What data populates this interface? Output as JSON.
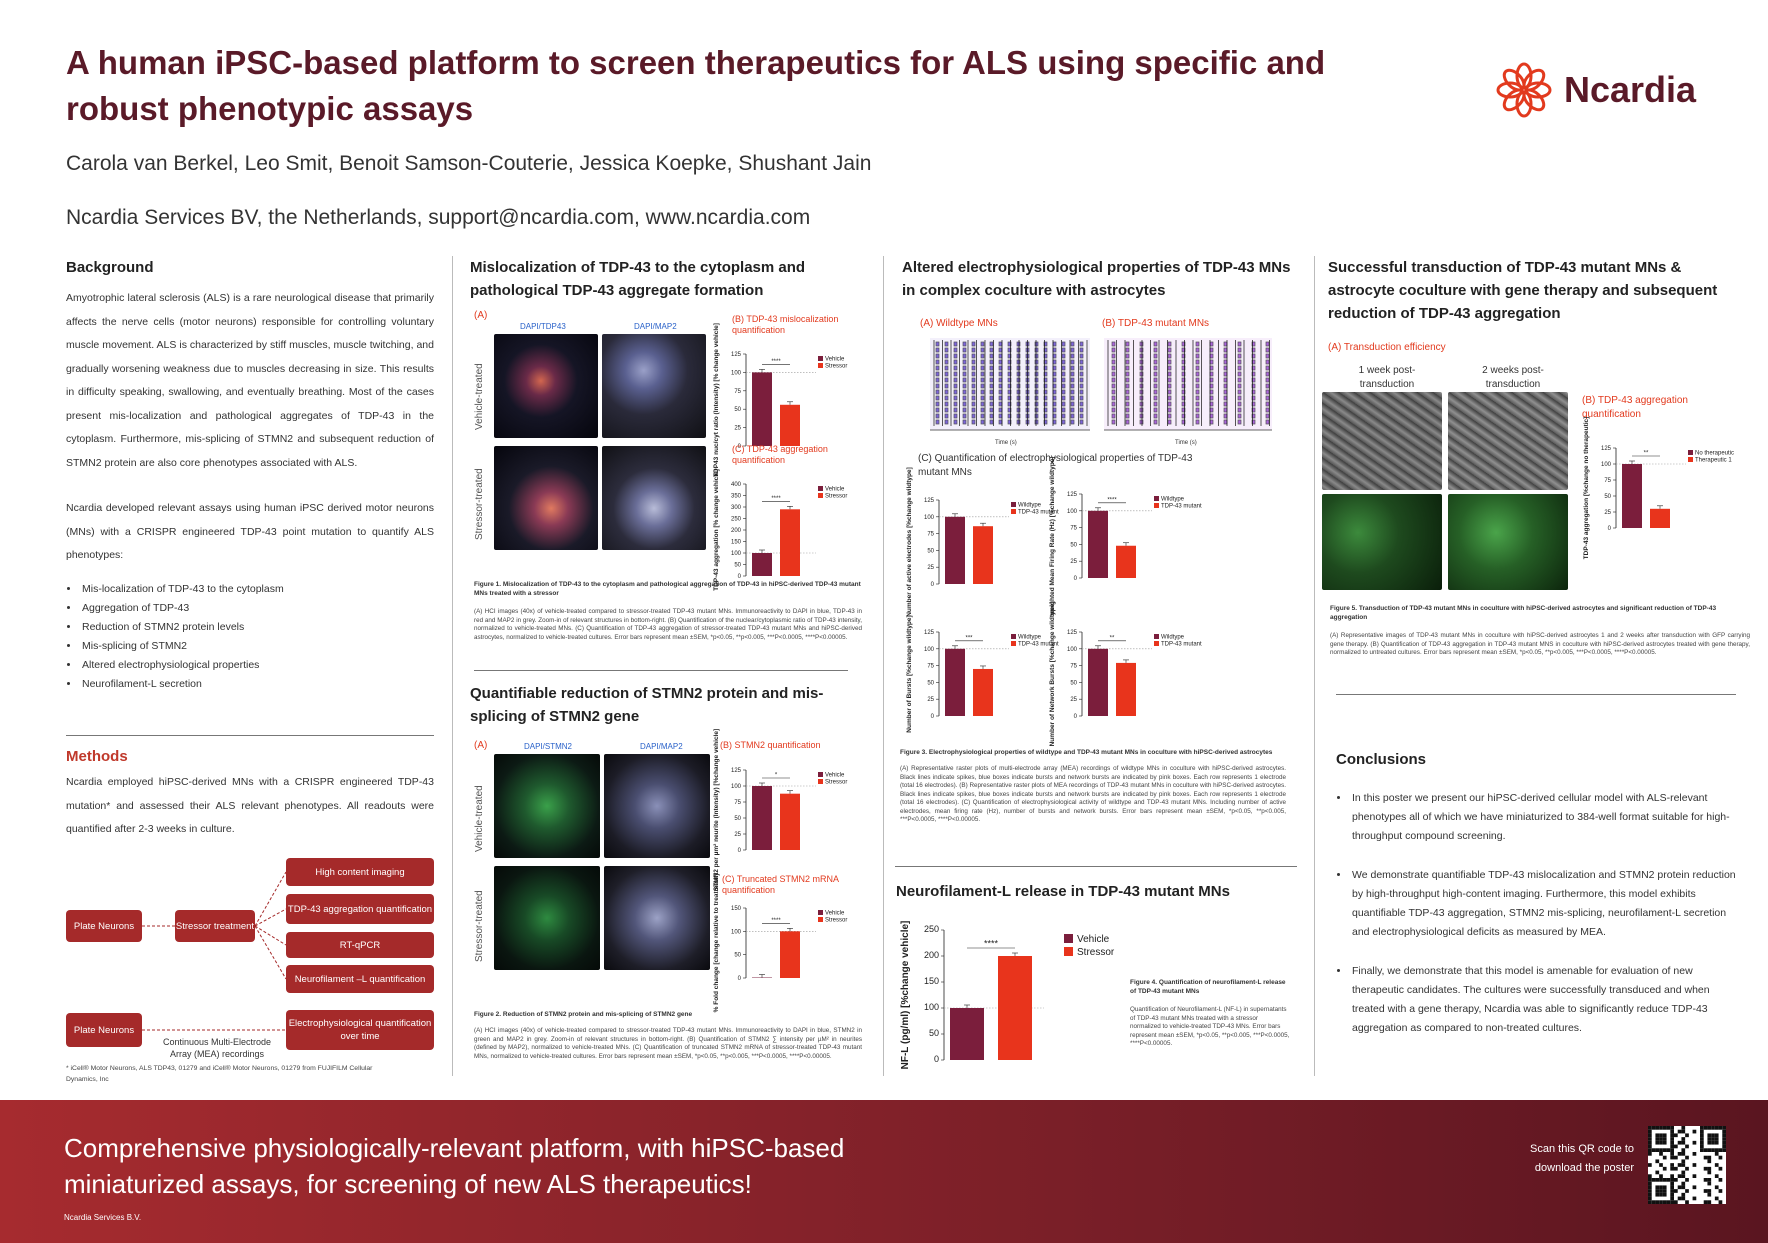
{
  "header": {
    "title": "A human iPSC-based platform to screen therapeutics for ALS using specific and robust phenotypic assays",
    "authors": "Carola van Berkel, Leo Smit, Benoit Samson-Couterie, Jessica Koepke, Shushant Jain",
    "affiliation": "Ncardia Services BV, the Netherlands, support@ncardia.com, www.ncardia.com",
    "logo_text": "Ncardia"
  },
  "background": {
    "heading": "Background",
    "p1": "Amyotrophic lateral sclerosis (ALS) is a rare neurological disease that primarily affects the nerve cells (motor neurons) responsible for controlling voluntary muscle movement. ALS is characterized by stiff muscles, muscle twitching, and gradually worsening weakness due to muscles decreasing in size. This results in difficulty speaking, swallowing, and eventually breathing. Most of the cases present mis-localization and pathological aggregates of TDP-43 in the cytoplasm. Furthermore, mis-splicing of STMN2 and subsequent reduction of STMN2 protein are also core phenotypes associated with ALS.",
    "p2": "Ncardia developed relevant assays using human iPSC derived motor neurons (MNs) with a CRISPR engineered TDP-43 point mutation to quantify ALS phenotypes:",
    "bullets": [
      "Mis-localization of TDP-43 to the cytoplasm",
      "Aggregation of TDP-43",
      "Reduction of STMN2 protein levels",
      "Mis-splicing of STMN2",
      "Altered electrophysiological properties",
      "Neurofilament-L secretion"
    ]
  },
  "methods": {
    "heading": "Methods",
    "text": "Ncardia employed hiPSC-derived MNs with a CRISPR engineered TDP-43 mutation* and assessed their ALS relevant phenotypes. All readouts were quantified after 2-3 weeks in culture.",
    "plate1": "Plate Neurons",
    "stressor": "Stressor treatment",
    "readouts": [
      "High content imaging",
      "TDP-43 aggregation quantification",
      "RT-qPCR",
      "Neurofilament –L quantification"
    ],
    "plate2": "Plate Neurons",
    "mea_label": "Continuous Multi-Electrode Array (MEA) recordings",
    "ephys": "Electrophysiological quantification over time",
    "footnote": "* iCell® Motor Neurons, ALS TDP43, 01279 and iCell® Motor Neurons, 01279 from FUJIFILM Cellular Dynamics, Inc"
  },
  "col2": {
    "heading1": "Mislocalization of TDP-43 to the cytoplasm and pathological TDP-43 aggregate formation",
    "a_label": "(A)",
    "dapi_tdp": "DAPI/TDP43",
    "dapi_map": "DAPI/MAP2",
    "vehicle_treated": "Vehicle-treated",
    "stressor_treated": "Stressor-treated",
    "b_label": "(B) TDP-43 mislocalization quantification",
    "c_label": "(C) TDP-43 aggregation quantification",
    "fig1_title": "Figure 1. Mislocalization of TDP-43 to the cytoplasm and pathological aggregation of TDP-43 in hiPSC-derived TDP-43 mutant MNs treated with a stressor",
    "fig1_text": "(A) HCI images (40x) of vehicle-treated compared to stressor-treated TDP-43 mutant MNs. Immunoreactivity to DAPI in blue, TDP-43 in red and MAP2 in grey. Zoom-in of relevant structures in bottom-right. (B) Quantification of the nuclear/cytoplasmic ratio of TDP-43 intensity, normalized to vehicle-treated MNs. (C) Quantification of TDP-43 aggregation of stressor-treated TDP-43 mutant MNs and hiPSC-derived astrocytes, normalized to vehicle-treated cultures. Error bars represent mean ±SEM, *p<0.05, **p<0.005, ***P<0.0005, ****P<0.00005.",
    "heading2": "Quantifiable reduction of STMN2 protein and mis-splicing of STMN2 gene",
    "dapi_stmn": "DAPI/STMN2",
    "b2_label": "(B) STMN2 quantification",
    "c2_label": "(C) Truncated STMN2 mRNA quantification",
    "fig2_title": "Figure 2. Reduction of STMN2 protein and mis-splicing of STMN2 gene",
    "fig2_text": "(A) HCI images (40x) of vehicle-treated compared to stressor-treated TDP-43 mutant MNs. Immunoreactivity to DAPI in blue, STMN2 in green and MAP2 in grey. Zoom-in of relevant structures in bottom-right. (B) Quantification of STMN2 ∑ intensity per µM² in neurites (defined by MAP2), normalized to vehicle-treated MNs. (C) Quantification of truncated STMN2 mRNA of stressor-treated TDP-43 mutant MNs, normalized to vehicle-treated cultures. Error bars represent mean ±SEM, *p<0.05, **p<0.005, ***P<0.0005, ****P<0.00005."
  },
  "col3": {
    "heading1": "Altered electrophysiological properties of TDP-43 MNs in complex coculture with astrocytes",
    "a_label": "(A) Wildtype MNs",
    "b_label": "(B) TDP-43 mutant MNs",
    "time_label": "Time (s)",
    "c_label": "(C) Quantification of electrophysiological properties of TDP-43 mutant MNs",
    "fig3_title": "Figure 3. Electrophysiological properties of wildtype and TDP-43 mutant MNs in coculture with hiPSC-derived astrocytes",
    "fig3_text": "(A) Representative raster plots of multi-electrode array (MEA) recordings of wildtype MNs in coculture with hiPSC-derived astrocytes. Black lines indicate spikes, blue boxes indicate bursts and network bursts are indicated by pink boxes. Each row represents 1 electrode (total 16 electrodes). (B) Representative raster plots of MEA recordings of TDP-43 mutant MNs in coculture with hiPSC-derived astrocytes. Black lines indicate spikes, blue boxes indicate bursts and network bursts are indicated by pink boxes. Each row represents 1 electrode (total 16 electrodes). (C) Quantification of electrophysiological activity of wildtype and TDP-43 mutant MNs. Including number of active electrodes, mean firing rate (Hz), number of bursts and network bursts. Error bars represent mean ±SEM, *p<0.05, **p<0.005, ***P<0.0005, ****P<0.00005.",
    "heading2": "Neurofilament-L release in TDP-43 mutant MNs",
    "fig4_title": "Figure 4. Quantification of neurofilament-L release of TDP-43 mutant MNs",
    "fig4_text": "Quantification of Neurofilament-L (NF-L) in supernatants of TDP-43 mutant MNs treated with a stressor normalized to vehicle-treated TDP-43 MNs. Error bars represent mean ±SEM, *p<0.05, **p<0.005, ***P<0.0005, ****P<0.00005."
  },
  "col4": {
    "heading1": "Successful transduction of TDP-43 mutant MNs & astrocyte coculture with gene therapy and subsequent reduction of TDP-43 aggregation",
    "a_label": "(A) Transduction efficiency",
    "week1": "1 week post-transduction",
    "week2": "2 weeks post-transduction",
    "b_label": "(B) TDP-43 aggregation quantification",
    "fig5_title": "Figure 5. Transduction of TDP-43 mutant MNs in coculture with hiPSC-derived astrocytes and significant reduction of TDP-43 aggregation",
    "fig5_text": "(A) Representative images of TDP-43 mutant MNs in coculture with hiPSC-derived astrocytes 1 and 2 weeks after transduction with GFP carrying gene therapy. (B) Quantification of TDP-43 aggregation in TDP-43 mutant MNS in coculture with hiPSC-derived astrocytes treated with gene therapy, normalized to untreated cultures. Error bars represent mean ±SEM, *p<0.05, **p<0.005, ***P<0.0005, ****P<0.00005.",
    "conclusions_heading": "Conclusions",
    "conclusions": [
      "In this poster we present our hiPSC-derived cellular model with ALS-relevant phenotypes all of which we have miniaturized to 384-well format suitable for high-throughput compound screening.",
      "We demonstrate quantifiable TDP-43 mislocalization and STMN2 protein reduction by high-throughput high-content imaging. Furthermore, this model exhibits quantifiable TDP-43 aggregation, STMN2 mis-splicing, neurofilament-L secretion and electrophysiological deficits as measured by MEA.",
      "Finally, we demonstrate that this model is amenable for evaluation of new therapeutic candidates. The cultures were successfully transduced and when treated with a gene therapy, Ncardia was able to significantly reduce TDP-43 aggregation as compared to non-treated cultures."
    ]
  },
  "footer": {
    "message": "Comprehensive physiologically-relevant platform, with hiPSC-based miniaturized assays, for screening of new ALS therapeutics!",
    "company": "Ncardia Services B.V.",
    "qr_text": "Scan this QR code to download the poster"
  },
  "colors": {
    "vehicle": "#7b1e3c",
    "stressor": "#e8341c",
    "brand": "#5a1a28"
  },
  "chart_data": [
    {
      "id": "tdp43_mislocalization",
      "type": "bar",
      "categories": [
        "Vehicle",
        "Stressor"
      ],
      "values": [
        100,
        56
      ],
      "ylabel": "TDP43 nuc/cyt ratio (Intensity) [% change vehicle]",
      "ylim": [
        0,
        125
      ],
      "ticks": [
        0,
        25,
        50,
        75,
        100,
        125
      ],
      "legend": [
        "Vehicle",
        "Stressor"
      ],
      "sig": "****"
    },
    {
      "id": "tdp43_aggregation",
      "type": "bar",
      "categories": [
        "Vehicle",
        "Stressor"
      ],
      "values": [
        100,
        290
      ],
      "ylabel": "TDP-43 aggregation [% change vehicle]",
      "ylim": [
        0,
        400
      ],
      "ticks": [
        0,
        50,
        100,
        150,
        200,
        250,
        300,
        350,
        400
      ],
      "legend": [
        "Vehicle",
        "Stressor"
      ],
      "sig": "****"
    },
    {
      "id": "stmn2_protein",
      "type": "bar",
      "categories": [
        "Vehicle",
        "Stressor"
      ],
      "values": [
        100,
        88
      ],
      "ylabel": "STMN2 per µm² neurite (Intensity) [%change vehicle]",
      "ylim": [
        0,
        125
      ],
      "ticks": [
        0,
        25,
        50,
        75,
        100,
        125
      ],
      "legend": [
        "Vehicle",
        "Stressor"
      ],
      "sig": "*"
    },
    {
      "id": "stmn2_mrna",
      "type": "bar",
      "categories": [
        "Vehicle",
        "Stressor"
      ],
      "values": [
        1,
        100
      ],
      "ylabel": "% Fold change [change relative to treatment]",
      "ylim": [
        0,
        150
      ],
      "ticks": [
        0,
        50,
        100,
        150
      ],
      "legend": [
        "Vehicle",
        "Stressor"
      ],
      "sig": "****"
    },
    {
      "id": "active_electrodes",
      "type": "bar",
      "categories": [
        "Wildtype",
        "TDP-43 mutant"
      ],
      "values": [
        100,
        86
      ],
      "ylabel": "Number of active electrodes [%change wildtype]",
      "ylim": [
        0,
        125
      ],
      "ticks": [
        0,
        25,
        50,
        75,
        100,
        125
      ],
      "legend": [
        "Wildtype",
        "TDP-43 mutant"
      ],
      "sig": ""
    },
    {
      "id": "mean_firing_rate",
      "type": "bar",
      "categories": [
        "Wildtype",
        "TDP-43 mutant"
      ],
      "values": [
        100,
        48
      ],
      "ylabel": "weighted Mean Firing Rate (Hz) [%change wildtype]",
      "ylim": [
        0,
        125
      ],
      "ticks": [
        0,
        25,
        50,
        75,
        100,
        125
      ],
      "legend": [
        "Wildtype",
        "TDP-43 mutant"
      ],
      "sig": "****"
    },
    {
      "id": "number_bursts",
      "type": "bar",
      "categories": [
        "Wildtype",
        "TDP-43 mutant"
      ],
      "values": [
        100,
        70
      ],
      "ylabel": "Number of Bursts [%change wildtype]",
      "ylim": [
        0,
        125
      ],
      "ticks": [
        0,
        25,
        50,
        75,
        100,
        125
      ],
      "legend": [
        "Wildtype",
        "TDP-43 mutant"
      ],
      "sig": "***"
    },
    {
      "id": "network_bursts",
      "type": "bar",
      "categories": [
        "Wildtype",
        "TDP-43 mutant"
      ],
      "values": [
        100,
        79
      ],
      "ylabel": "Number of Network Bursts [%change wildtype]",
      "ylim": [
        0,
        125
      ],
      "ticks": [
        0,
        25,
        50,
        75,
        100,
        125
      ],
      "legend": [
        "Wildtype",
        "TDP-43 mutant"
      ],
      "sig": "**"
    },
    {
      "id": "nfl",
      "type": "bar",
      "categories": [
        "Vehicle",
        "Stressor"
      ],
      "values": [
        100,
        200
      ],
      "ylabel": "NF-L (pg/ml) [%change vehicle]",
      "ylim": [
        0,
        250
      ],
      "ticks": [
        0,
        50,
        100,
        150,
        200,
        250
      ],
      "legend": [
        "Vehicle",
        "Stressor"
      ],
      "sig": "****"
    },
    {
      "id": "gene_therapy",
      "type": "bar",
      "categories": [
        "No therapeutic",
        "Therapeutic 1"
      ],
      "values": [
        100,
        30
      ],
      "ylabel": "TDP-43 aggregation [%change no therapeutic]",
      "ylim": [
        0,
        125
      ],
      "ticks": [
        0,
        25,
        50,
        75,
        100,
        125
      ],
      "legend": [
        "No therapeutic",
        "Therapeutic 1"
      ],
      "sig": "**"
    }
  ]
}
